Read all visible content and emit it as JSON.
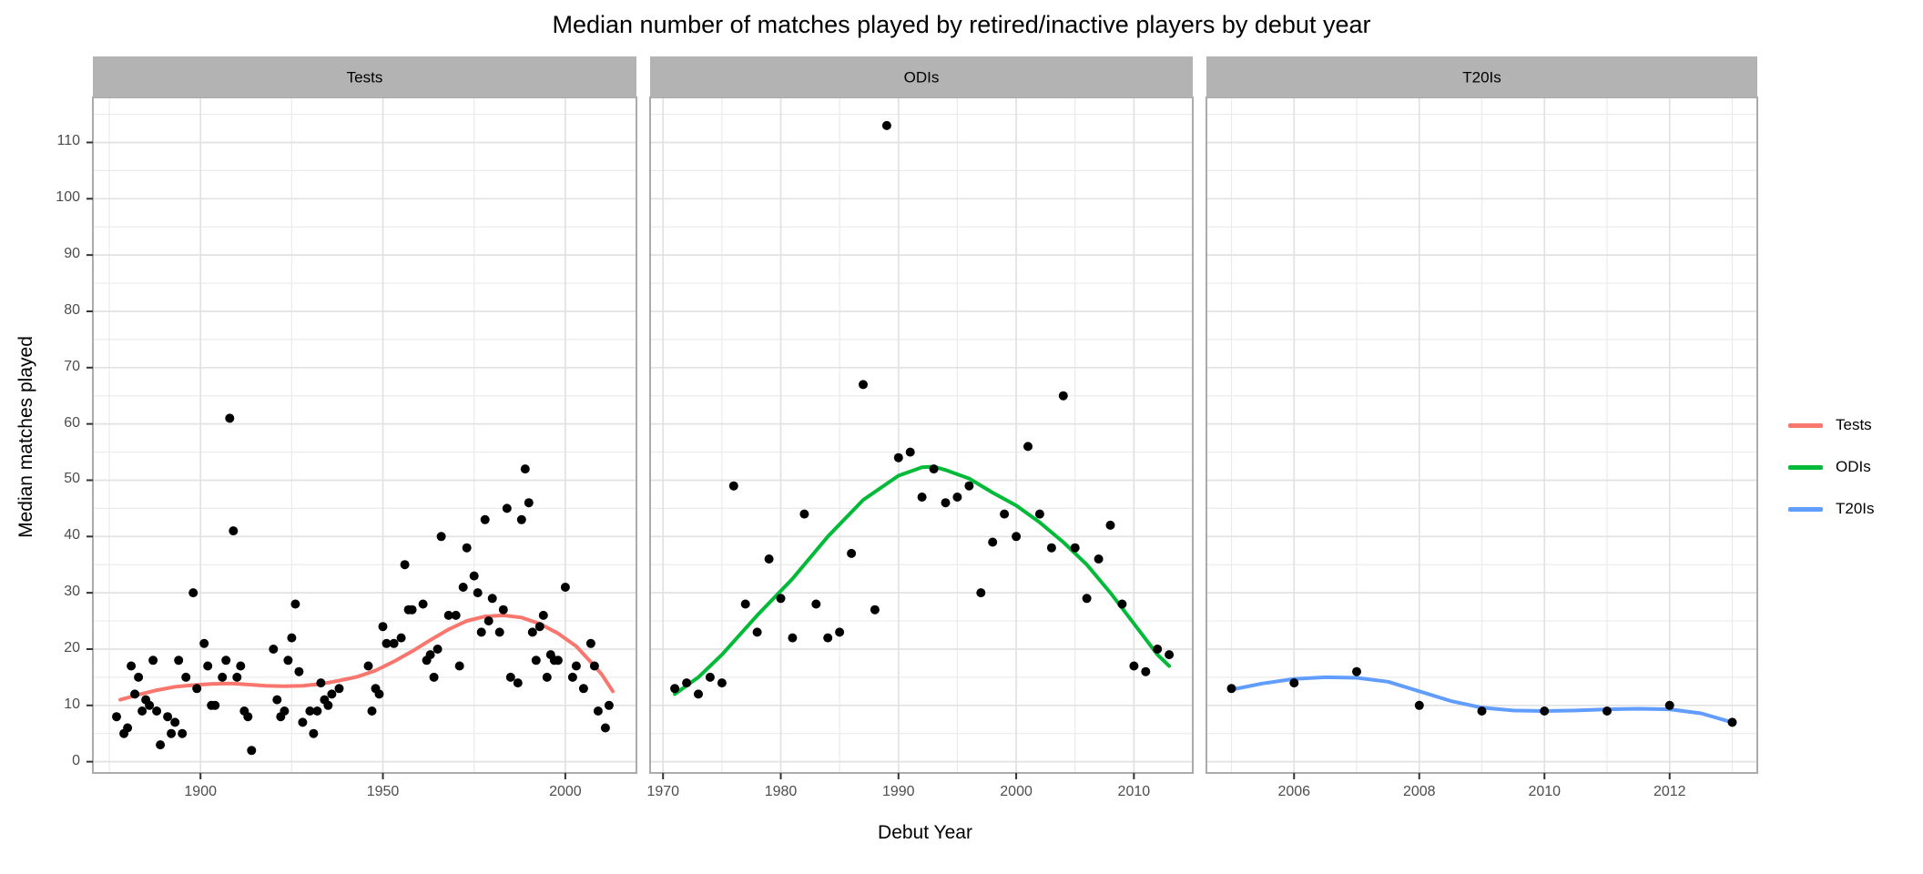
{
  "title": "Median number of matches played by retired/inactive players by debut year",
  "axes": {
    "x_title": "Debut Year",
    "y_title": "Median matches played"
  },
  "legend": {
    "items": [
      {
        "label": "Tests",
        "color": "#F8766D"
      },
      {
        "label": "ODIs",
        "color": "#00BA38"
      },
      {
        "label": "T20Is",
        "color": "#619CFF"
      }
    ]
  },
  "style": {
    "strip_fill": "#B3B3B3",
    "strip_text_color": "#000000",
    "panel_fill": "#FFFFFF",
    "panel_border": "#ABABAB",
    "grid_major": "#E2E2E2",
    "grid_minor": "#EBEBEB",
    "tick_mark_color": "#333333",
    "point_color": "#000000"
  },
  "chart_data": {
    "type": "scatter",
    "title": "Median number of matches played by retired/inactive players by debut year",
    "xlabel": "Debut Year",
    "ylabel": "Median matches played",
    "grid": true,
    "legend_position": "right",
    "ylim": [
      -2,
      118
    ],
    "y_ticks": [
      0,
      10,
      20,
      30,
      40,
      50,
      60,
      70,
      80,
      90,
      100,
      110
    ],
    "y_minor": [
      5,
      15,
      25,
      35,
      45,
      55,
      65,
      75,
      85,
      95,
      105,
      115
    ],
    "facets": [
      {
        "label": "Tests",
        "color": "#F8766D",
        "xlim": [
          1870.5,
          2019.5
        ],
        "x_ticks": [
          1900,
          1950,
          2000
        ],
        "x_minor": [
          1875,
          1925,
          1975
        ],
        "points": [
          [
            1877,
            8
          ],
          [
            1879,
            5
          ],
          [
            1880,
            6
          ],
          [
            1881,
            17
          ],
          [
            1882,
            12
          ],
          [
            1883,
            15
          ],
          [
            1884,
            9
          ],
          [
            1885,
            11
          ],
          [
            1886,
            10
          ],
          [
            1887,
            18
          ],
          [
            1888,
            9
          ],
          [
            1889,
            3
          ],
          [
            1891,
            8
          ],
          [
            1892,
            5
          ],
          [
            1893,
            7
          ],
          [
            1894,
            18
          ],
          [
            1895,
            5
          ],
          [
            1896,
            15
          ],
          [
            1898,
            30
          ],
          [
            1899,
            13
          ],
          [
            1901,
            21
          ],
          [
            1902,
            17
          ],
          [
            1903,
            10
          ],
          [
            1904,
            10
          ],
          [
            1906,
            15
          ],
          [
            1907,
            18
          ],
          [
            1908,
            61
          ],
          [
            1909,
            41
          ],
          [
            1910,
            15
          ],
          [
            1911,
            17
          ],
          [
            1912,
            9
          ],
          [
            1913,
            8
          ],
          [
            1914,
            2
          ],
          [
            1920,
            20
          ],
          [
            1921,
            11
          ],
          [
            1922,
            8
          ],
          [
            1923,
            9
          ],
          [
            1924,
            18
          ],
          [
            1925,
            22
          ],
          [
            1926,
            28
          ],
          [
            1927,
            16
          ],
          [
            1928,
            7
          ],
          [
            1930,
            9
          ],
          [
            1931,
            5
          ],
          [
            1932,
            9
          ],
          [
            1933,
            14
          ],
          [
            1934,
            11
          ],
          [
            1935,
            10
          ],
          [
            1936,
            12
          ],
          [
            1938,
            13
          ],
          [
            1946,
            17
          ],
          [
            1947,
            9
          ],
          [
            1948,
            13
          ],
          [
            1949,
            12
          ],
          [
            1950,
            24
          ],
          [
            1951,
            21
          ],
          [
            1953,
            21
          ],
          [
            1955,
            22
          ],
          [
            1956,
            35
          ],
          [
            1957,
            27
          ],
          [
            1958,
            27
          ],
          [
            1961,
            28
          ],
          [
            1962,
            18
          ],
          [
            1963,
            19
          ],
          [
            1964,
            15
          ],
          [
            1965,
            20
          ],
          [
            1966,
            40
          ],
          [
            1968,
            26
          ],
          [
            1970,
            26
          ],
          [
            1971,
            17
          ],
          [
            1972,
            31
          ],
          [
            1973,
            38
          ],
          [
            1975,
            33
          ],
          [
            1976,
            30
          ],
          [
            1977,
            23
          ],
          [
            1978,
            43
          ],
          [
            1979,
            25
          ],
          [
            1980,
            29
          ],
          [
            1982,
            23
          ],
          [
            1983,
            27
          ],
          [
            1984,
            45
          ],
          [
            1985,
            15
          ],
          [
            1987,
            14
          ],
          [
            1988,
            43
          ],
          [
            1989,
            52
          ],
          [
            1990,
            46
          ],
          [
            1991,
            23
          ],
          [
            1992,
            18
          ],
          [
            1993,
            24
          ],
          [
            1994,
            26
          ],
          [
            1995,
            15
          ],
          [
            1996,
            19
          ],
          [
            1997,
            18
          ],
          [
            1998,
            18
          ],
          [
            2000,
            31
          ],
          [
            2002,
            15
          ],
          [
            2003,
            17
          ],
          [
            2005,
            13
          ],
          [
            2007,
            21
          ],
          [
            2008,
            17
          ],
          [
            2009,
            9
          ],
          [
            2011,
            6
          ],
          [
            2012,
            10
          ]
        ],
        "smooth": [
          [
            1878,
            11
          ],
          [
            1883,
            11.9
          ],
          [
            1888,
            12.7
          ],
          [
            1893,
            13.3
          ],
          [
            1898,
            13.6
          ],
          [
            1903,
            13.8
          ],
          [
            1908,
            13.9
          ],
          [
            1913,
            13.7
          ],
          [
            1918,
            13.5
          ],
          [
            1923,
            13.4
          ],
          [
            1928,
            13.5
          ],
          [
            1933,
            13.8
          ],
          [
            1938,
            14.4
          ],
          [
            1943,
            15.1
          ],
          [
            1948,
            16.2
          ],
          [
            1953,
            17.8
          ],
          [
            1958,
            19.6
          ],
          [
            1963,
            21.6
          ],
          [
            1968,
            23.5
          ],
          [
            1973,
            25
          ],
          [
            1978,
            25.8
          ],
          [
            1983,
            26
          ],
          [
            1988,
            25.6
          ],
          [
            1993,
            24.5
          ],
          [
            1998,
            22.8
          ],
          [
            2003,
            20.5
          ],
          [
            2008,
            17
          ],
          [
            2010,
            15.5
          ],
          [
            2013,
            12.5
          ]
        ]
      },
      {
        "label": "ODIs",
        "color": "#00BA38",
        "xlim": [
          1968.9,
          2015
        ],
        "x_ticks": [
          1970,
          1980,
          1990,
          2000,
          2010
        ],
        "x_minor": [
          1975,
          1985,
          1995,
          2005
        ],
        "points": [
          [
            1971,
            13
          ],
          [
            1972,
            14
          ],
          [
            1973,
            12
          ],
          [
            1974,
            15
          ],
          [
            1975,
            14
          ],
          [
            1976,
            49
          ],
          [
            1977,
            28
          ],
          [
            1978,
            23
          ],
          [
            1979,
            36
          ],
          [
            1980,
            29
          ],
          [
            1981,
            22
          ],
          [
            1982,
            44
          ],
          [
            1983,
            28
          ],
          [
            1984,
            22
          ],
          [
            1985,
            23
          ],
          [
            1986,
            37
          ],
          [
            1987,
            67
          ],
          [
            1988,
            27
          ],
          [
            1989,
            113
          ],
          [
            1990,
            54
          ],
          [
            1991,
            55
          ],
          [
            1992,
            47
          ],
          [
            1993,
            52
          ],
          [
            1994,
            46
          ],
          [
            1995,
            47
          ],
          [
            1996,
            49
          ],
          [
            1997,
            30
          ],
          [
            1998,
            39
          ],
          [
            1999,
            44
          ],
          [
            2000,
            40
          ],
          [
            2001,
            56
          ],
          [
            2002,
            44
          ],
          [
            2003,
            38
          ],
          [
            2004,
            65
          ],
          [
            2005,
            38
          ],
          [
            2006,
            29
          ],
          [
            2007,
            36
          ],
          [
            2008,
            42
          ],
          [
            2009,
            28
          ],
          [
            2010,
            17
          ],
          [
            2011,
            16
          ],
          [
            2012,
            20
          ],
          [
            2013,
            19
          ]
        ],
        "smooth": [
          [
            1971,
            12
          ],
          [
            1973,
            15
          ],
          [
            1975,
            19
          ],
          [
            1978,
            26
          ],
          [
            1981,
            32.5
          ],
          [
            1984,
            40
          ],
          [
            1987,
            46.5
          ],
          [
            1990,
            50.8
          ],
          [
            1992,
            52.3
          ],
          [
            1993,
            52.4
          ],
          [
            1994,
            51.8
          ],
          [
            1996,
            50.3
          ],
          [
            1998,
            47.8
          ],
          [
            2000,
            45.5
          ],
          [
            2002,
            42.5
          ],
          [
            2004,
            39
          ],
          [
            2006,
            35
          ],
          [
            2008,
            30
          ],
          [
            2010,
            24.5
          ],
          [
            2012,
            19
          ],
          [
            2013,
            17
          ]
        ]
      },
      {
        "label": "T20Is",
        "color": "#619CFF",
        "xlim": [
          2004.6,
          2013.4
        ],
        "x_ticks": [
          2006,
          2008,
          2010,
          2012
        ],
        "x_minor": [
          2005,
          2007,
          2009,
          2011,
          2013
        ],
        "points": [
          [
            2005,
            13
          ],
          [
            2006,
            14
          ],
          [
            2007,
            16
          ],
          [
            2008,
            10
          ],
          [
            2009,
            9
          ],
          [
            2010,
            9
          ],
          [
            2011,
            9
          ],
          [
            2012,
            10
          ],
          [
            2013,
            7
          ]
        ],
        "smooth": [
          [
            2005,
            12.8
          ],
          [
            2005.5,
            13.9
          ],
          [
            2006,
            14.7
          ],
          [
            2006.5,
            15
          ],
          [
            2007,
            14.9
          ],
          [
            2007.5,
            14.2
          ],
          [
            2008,
            12.5
          ],
          [
            2008.5,
            10.8
          ],
          [
            2009,
            9.6
          ],
          [
            2009.5,
            9.1
          ],
          [
            2010,
            9
          ],
          [
            2010.5,
            9.1
          ],
          [
            2011,
            9.3
          ],
          [
            2011.5,
            9.4
          ],
          [
            2012,
            9.3
          ],
          [
            2012.5,
            8.6
          ],
          [
            2013,
            7
          ]
        ]
      }
    ]
  }
}
